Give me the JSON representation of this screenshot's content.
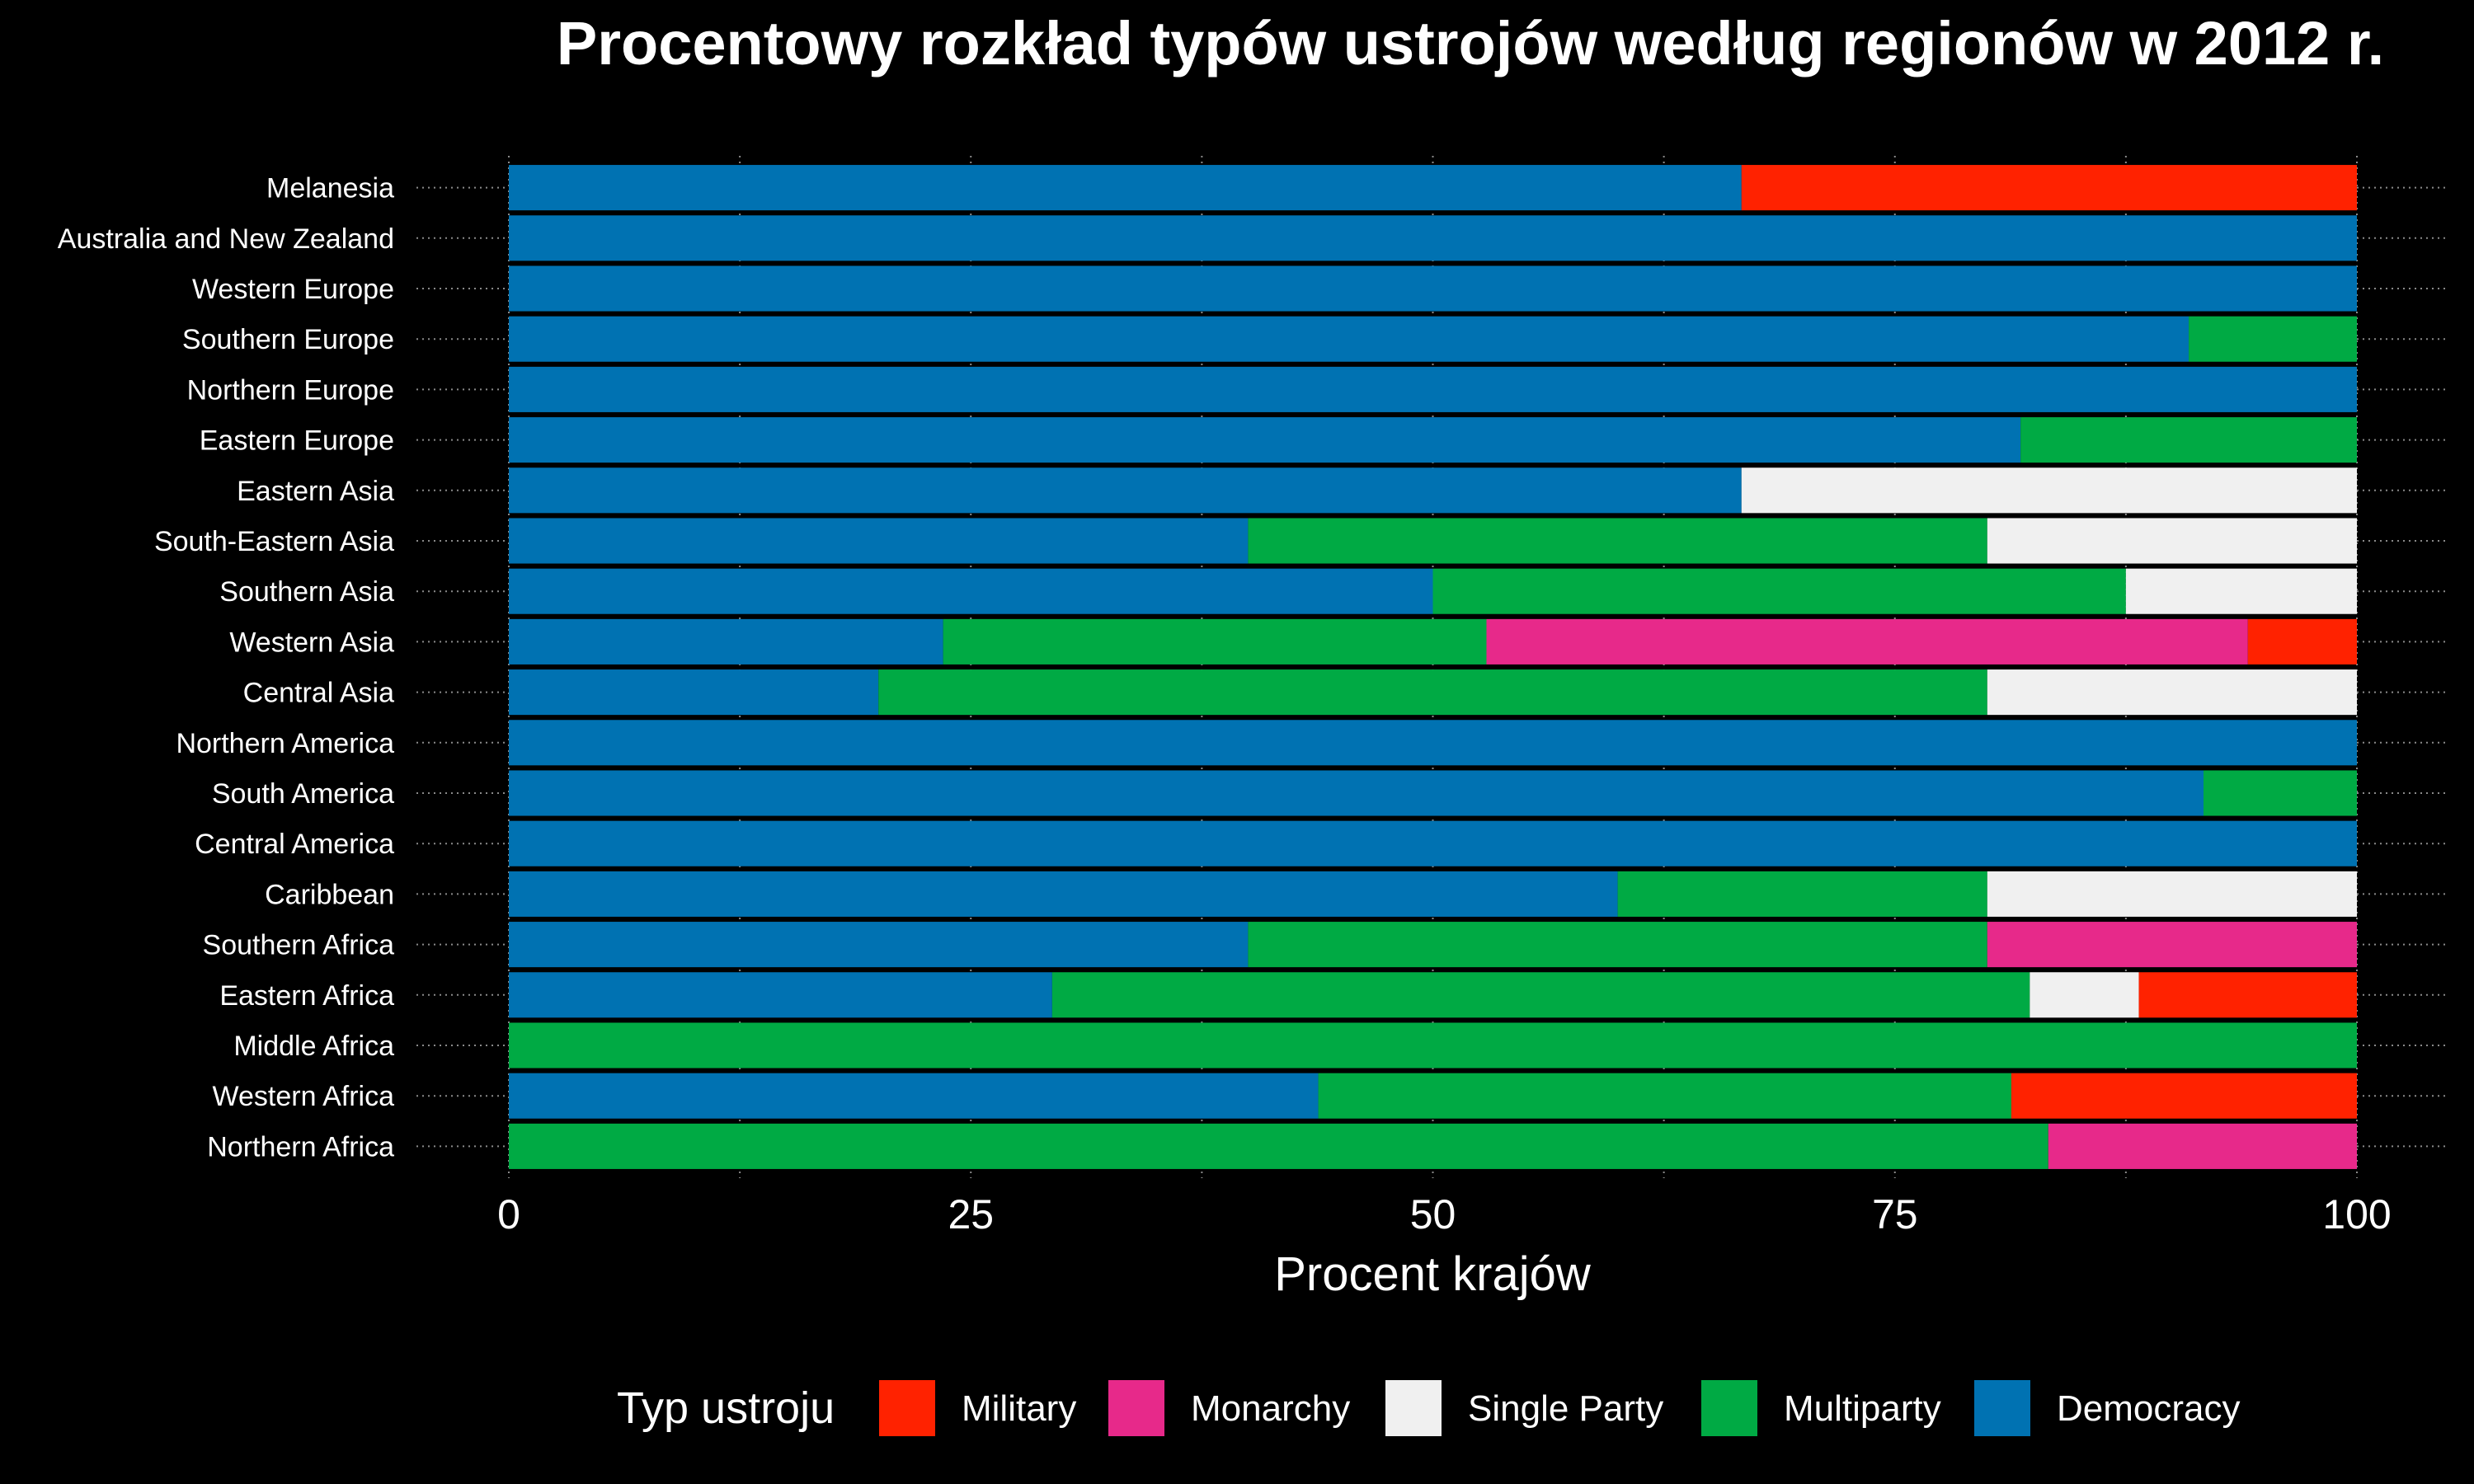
{
  "chart_data": {
    "type": "bar",
    "orientation": "horizontal",
    "stacked": true,
    "title": "Procentowy rozkład typów ustrojów według regionów w 2012 r.",
    "xlabel": "Procent krajów",
    "ylabel": "",
    "xlim": [
      0,
      100
    ],
    "xticks": [
      "0",
      "25",
      "50",
      "75",
      "100"
    ],
    "xtick_values": [
      0,
      25,
      50,
      75,
      100
    ],
    "grid": true,
    "legend_placement": "bottom",
    "legend_title": "Typ ustroju",
    "categories": [
      "Melanesia",
      "Australia and New Zealand",
      "Western Europe",
      "Southern Europe",
      "Northern Europe",
      "Eastern Europe",
      "Eastern Asia",
      "South-Eastern Asia",
      "Southern Asia",
      "Western Asia",
      "Central Asia",
      "Northern America",
      "South America",
      "Central America",
      "Caribbean",
      "Southern Africa",
      "Eastern Africa",
      "Middle Africa",
      "Western Africa",
      "Northern Africa"
    ],
    "series": [
      {
        "name": "Democracy",
        "color": "#0072B2",
        "values": [
          66.7,
          100,
          100,
          90.9,
          100,
          81.8,
          66.7,
          40,
          50,
          23.5,
          20,
          100,
          91.7,
          100,
          60,
          40,
          29.4,
          0,
          43.8,
          0
        ]
      },
      {
        "name": "Multiparty",
        "color": "#00AA44",
        "values": [
          0,
          0,
          0,
          9.1,
          0,
          18.2,
          0,
          40,
          37.5,
          29.4,
          60,
          0,
          8.3,
          0,
          20,
          40,
          52.9,
          100,
          37.5,
          83.3
        ]
      },
      {
        "name": "Single Party",
        "color": "#F0F0F0",
        "values": [
          0,
          0,
          0,
          0,
          0,
          0,
          33.3,
          20,
          12.5,
          0,
          20,
          0,
          0,
          0,
          20,
          0,
          5.9,
          0,
          0,
          0
        ]
      },
      {
        "name": "Monarchy",
        "color": "#E7298A",
        "values": [
          0,
          0,
          0,
          0,
          0,
          0,
          0,
          0,
          0,
          41.2,
          0,
          0,
          0,
          0,
          0,
          20,
          0,
          0,
          0,
          16.7
        ]
      },
      {
        "name": "Military",
        "color": "#FF2200",
        "values": [
          33.3,
          0,
          0,
          0,
          0,
          0,
          0,
          0,
          0,
          5.9,
          0,
          0,
          0,
          0,
          0,
          0,
          11.8,
          0,
          18.7,
          0
        ]
      }
    ],
    "legend_order": [
      "Military",
      "Monarchy",
      "Single Party",
      "Multiparty",
      "Democracy"
    ]
  }
}
